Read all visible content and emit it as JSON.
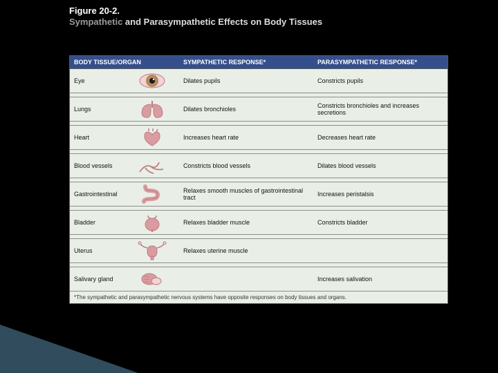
{
  "header": {
    "figure_number": "Figure 20-2.",
    "title_prefix_grey": "Sympathetic",
    "title_rest": " and Parasympathetic Effects on Body Tissues"
  },
  "colors": {
    "slide_background": "#000000",
    "table_background": "#e9efe7",
    "header_row_background": "#344f8b",
    "header_row_text": "#ffffff",
    "cell_text": "#111111",
    "row_border": "#8a8f87",
    "accent_triangle": "rgba(90,140,170,0.55)",
    "organ_primary": "#d99ca1",
    "organ_shadow": "#c07b82",
    "organ_highlight": "#f2d3d6"
  },
  "table": {
    "columns": [
      "BODY TISSUE/ORGAN",
      "SYMPATHETIC RESPONSE*",
      "PARASYMPATHETIC RESPONSE*"
    ],
    "rows": [
      {
        "organ": "Eye",
        "icon": "eye",
        "sympathetic": "Dilates pupils",
        "parasympathetic": "Constricts pupils"
      },
      {
        "organ": "Lungs",
        "icon": "lungs",
        "sympathetic": "Dilates bronchioles",
        "parasympathetic": "Constricts bronchioles and increases secretions"
      },
      {
        "organ": "Heart",
        "icon": "heart",
        "sympathetic": "Increases heart rate",
        "parasympathetic": "Decreases heart rate"
      },
      {
        "organ": "Blood vessels",
        "icon": "vessels",
        "sympathetic": "Constricts blood vessels",
        "parasympathetic": "Dilates blood vessels"
      },
      {
        "organ": "Gastrointestinal",
        "icon": "gi",
        "sympathetic": "Relaxes smooth muscles of gastrointestinal tract",
        "parasympathetic": "Increases peristalsis"
      },
      {
        "organ": "Bladder",
        "icon": "bladder",
        "sympathetic": "Relaxes bladder muscle",
        "parasympathetic": "Constricts bladder"
      },
      {
        "organ": "Uterus",
        "icon": "uterus",
        "sympathetic": "Relaxes uterine muscle",
        "parasympathetic": ""
      },
      {
        "organ": "Salivary gland",
        "icon": "salivary",
        "sympathetic": "",
        "parasympathetic": "Increases salivation"
      }
    ],
    "footnote": "*The sympathetic and parasympathetic nervous systems have opposite responses on body tissues and organs."
  }
}
